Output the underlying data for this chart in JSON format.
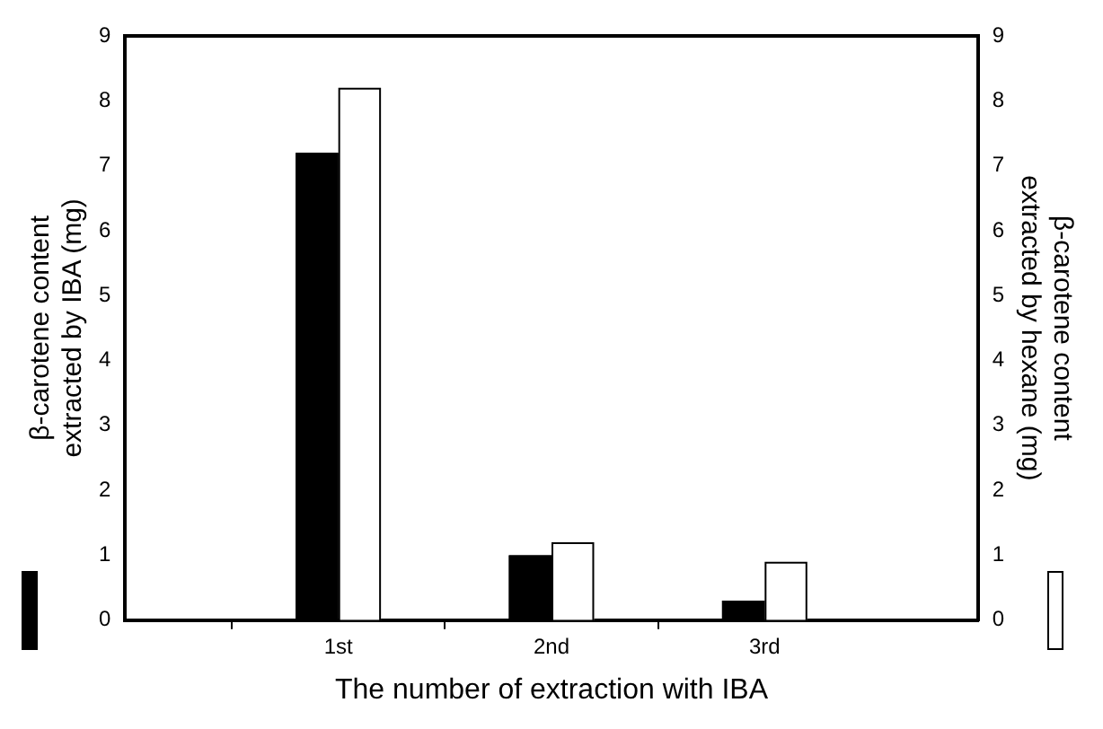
{
  "chart_data": {
    "type": "bar",
    "xlabel": "The number of extraction with IBA",
    "ylabel": "β-carotene content extracted by IBA (mg)",
    "y2label": "β-carotene content extracted by hexane (mg)",
    "categories": [
      null,
      "1st",
      "2nd",
      "3rd",
      null
    ],
    "series": [
      {
        "color": "#000000",
        "values": [
          null,
          7.2,
          1.0,
          0.3,
          null
        ]
      },
      {
        "color": "#ffffff",
        "axis": "y2",
        "values": [
          null,
          8.2,
          1.2,
          0.9,
          null
        ]
      }
    ],
    "ylim": [
      0,
      9
    ],
    "yticks": [
      0,
      1,
      2,
      3,
      4,
      5,
      6,
      7,
      8,
      9
    ],
    "y2lim": [
      0,
      9
    ],
    "y2ticks": [
      0,
      1,
      2,
      3,
      4,
      5,
      6,
      7,
      8,
      9
    ],
    "grid": false,
    "legend": false
  }
}
